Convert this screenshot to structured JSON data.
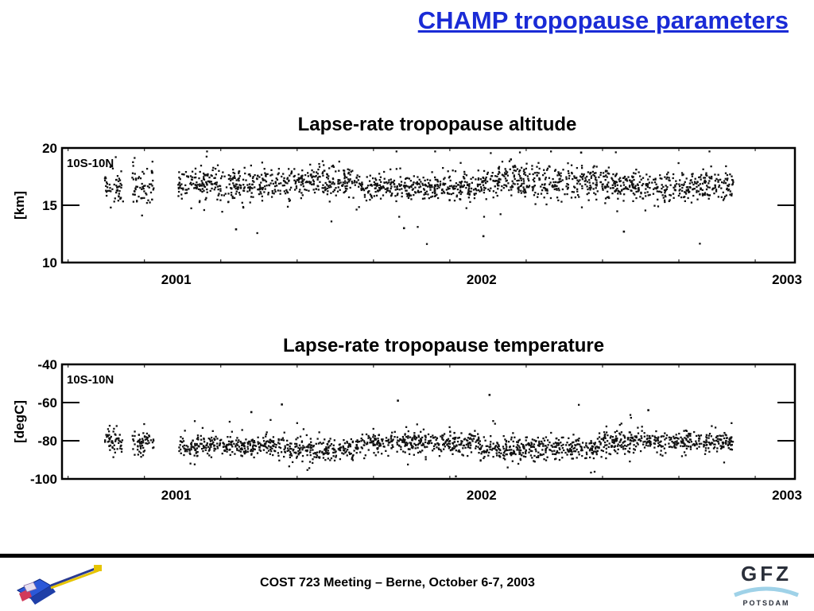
{
  "slide": {
    "title": "CHAMP tropopause parameters",
    "footer": "COST 723 Meeting – Berne, October 6-7, 2003",
    "logo_text": "GFZ",
    "logo_subtext": "POTSDAM",
    "accent_color": "#1a2bd6"
  },
  "chart_data": [
    {
      "type": "scatter",
      "title": "Lapse-rate tropopause altitude",
      "annotation": "10S-10N",
      "ylabel": "[km]",
      "ylim": [
        10,
        20
      ],
      "yticks": [
        "20",
        "15",
        "10"
      ],
      "xlim": [
        2000.98,
        2003.38
      ],
      "x_tick_labels": [
        {
          "label": "2001",
          "x": 2001.0
        },
        {
          "label": "2002",
          "x": 2002.0
        },
        {
          "label": "2003",
          "x": 2003.0
        }
      ],
      "segments": [
        {
          "x_start": 2001.12,
          "x_end": 2001.18,
          "mean": 16.6,
          "spread": 0.8
        },
        {
          "x_start": 2001.21,
          "x_end": 2001.28,
          "mean": 16.5,
          "spread": 0.8
        },
        {
          "x_start": 2001.36,
          "x_end": 2001.72,
          "mean": 16.8,
          "spread": 0.7
        },
        {
          "x_start": 2001.72,
          "x_end": 2001.95,
          "mean": 17.1,
          "spread": 0.7
        },
        {
          "x_start": 2001.95,
          "x_end": 2002.35,
          "mean": 16.6,
          "spread": 0.6
        },
        {
          "x_start": 2002.35,
          "x_end": 2002.75,
          "mean": 17.1,
          "spread": 0.7
        },
        {
          "x_start": 2002.75,
          "x_end": 2003.18,
          "mean": 16.7,
          "spread": 0.7
        }
      ],
      "outliers": [
        {
          "x": 2002.36,
          "y": 12.3
        },
        {
          "x": 2002.82,
          "y": 12.7
        },
        {
          "x": 2001.55,
          "y": 12.9
        },
        {
          "x": 2002.1,
          "y": 13.0
        },
        {
          "x": 2002.68,
          "y": 19.6
        },
        {
          "x": 2002.45,
          "y": 19.0
        }
      ]
    },
    {
      "type": "scatter",
      "title": "Lapse-rate tropopause temperature",
      "annotation": "10S-10N",
      "ylabel": "[degC]",
      "ylim": [
        -100,
        -40
      ],
      "yticks": [
        "-40",
        "-60",
        "-80",
        "-100"
      ],
      "xlim": [
        2000.98,
        2003.38
      ],
      "x_tick_labels": [
        {
          "label": "2001",
          "x": 2001.0
        },
        {
          "label": "2002",
          "x": 2002.0
        },
        {
          "label": "2003",
          "x": 2003.0
        }
      ],
      "segments": [
        {
          "x_start": 2001.12,
          "x_end": 2001.18,
          "mean": -80.0,
          "spread": 3.0
        },
        {
          "x_start": 2001.21,
          "x_end": 2001.28,
          "mean": -80.5,
          "spread": 3.0
        },
        {
          "x_start": 2001.36,
          "x_end": 2001.72,
          "mean": -82.5,
          "spread": 2.8
        },
        {
          "x_start": 2001.72,
          "x_end": 2001.95,
          "mean": -84.5,
          "spread": 2.8
        },
        {
          "x_start": 2001.95,
          "x_end": 2002.35,
          "mean": -81.0,
          "spread": 2.8
        },
        {
          "x_start": 2002.35,
          "x_end": 2002.75,
          "mean": -84.0,
          "spread": 3.0
        },
        {
          "x_start": 2002.75,
          "x_end": 2003.18,
          "mean": -80.5,
          "spread": 2.8
        }
      ],
      "outliers": [
        {
          "x": 2002.38,
          "y": -56.0
        },
        {
          "x": 2001.7,
          "y": -61.0
        },
        {
          "x": 2002.08,
          "y": -59.0
        },
        {
          "x": 2001.6,
          "y": -65.0
        },
        {
          "x": 2002.9,
          "y": -64.0
        }
      ]
    }
  ]
}
